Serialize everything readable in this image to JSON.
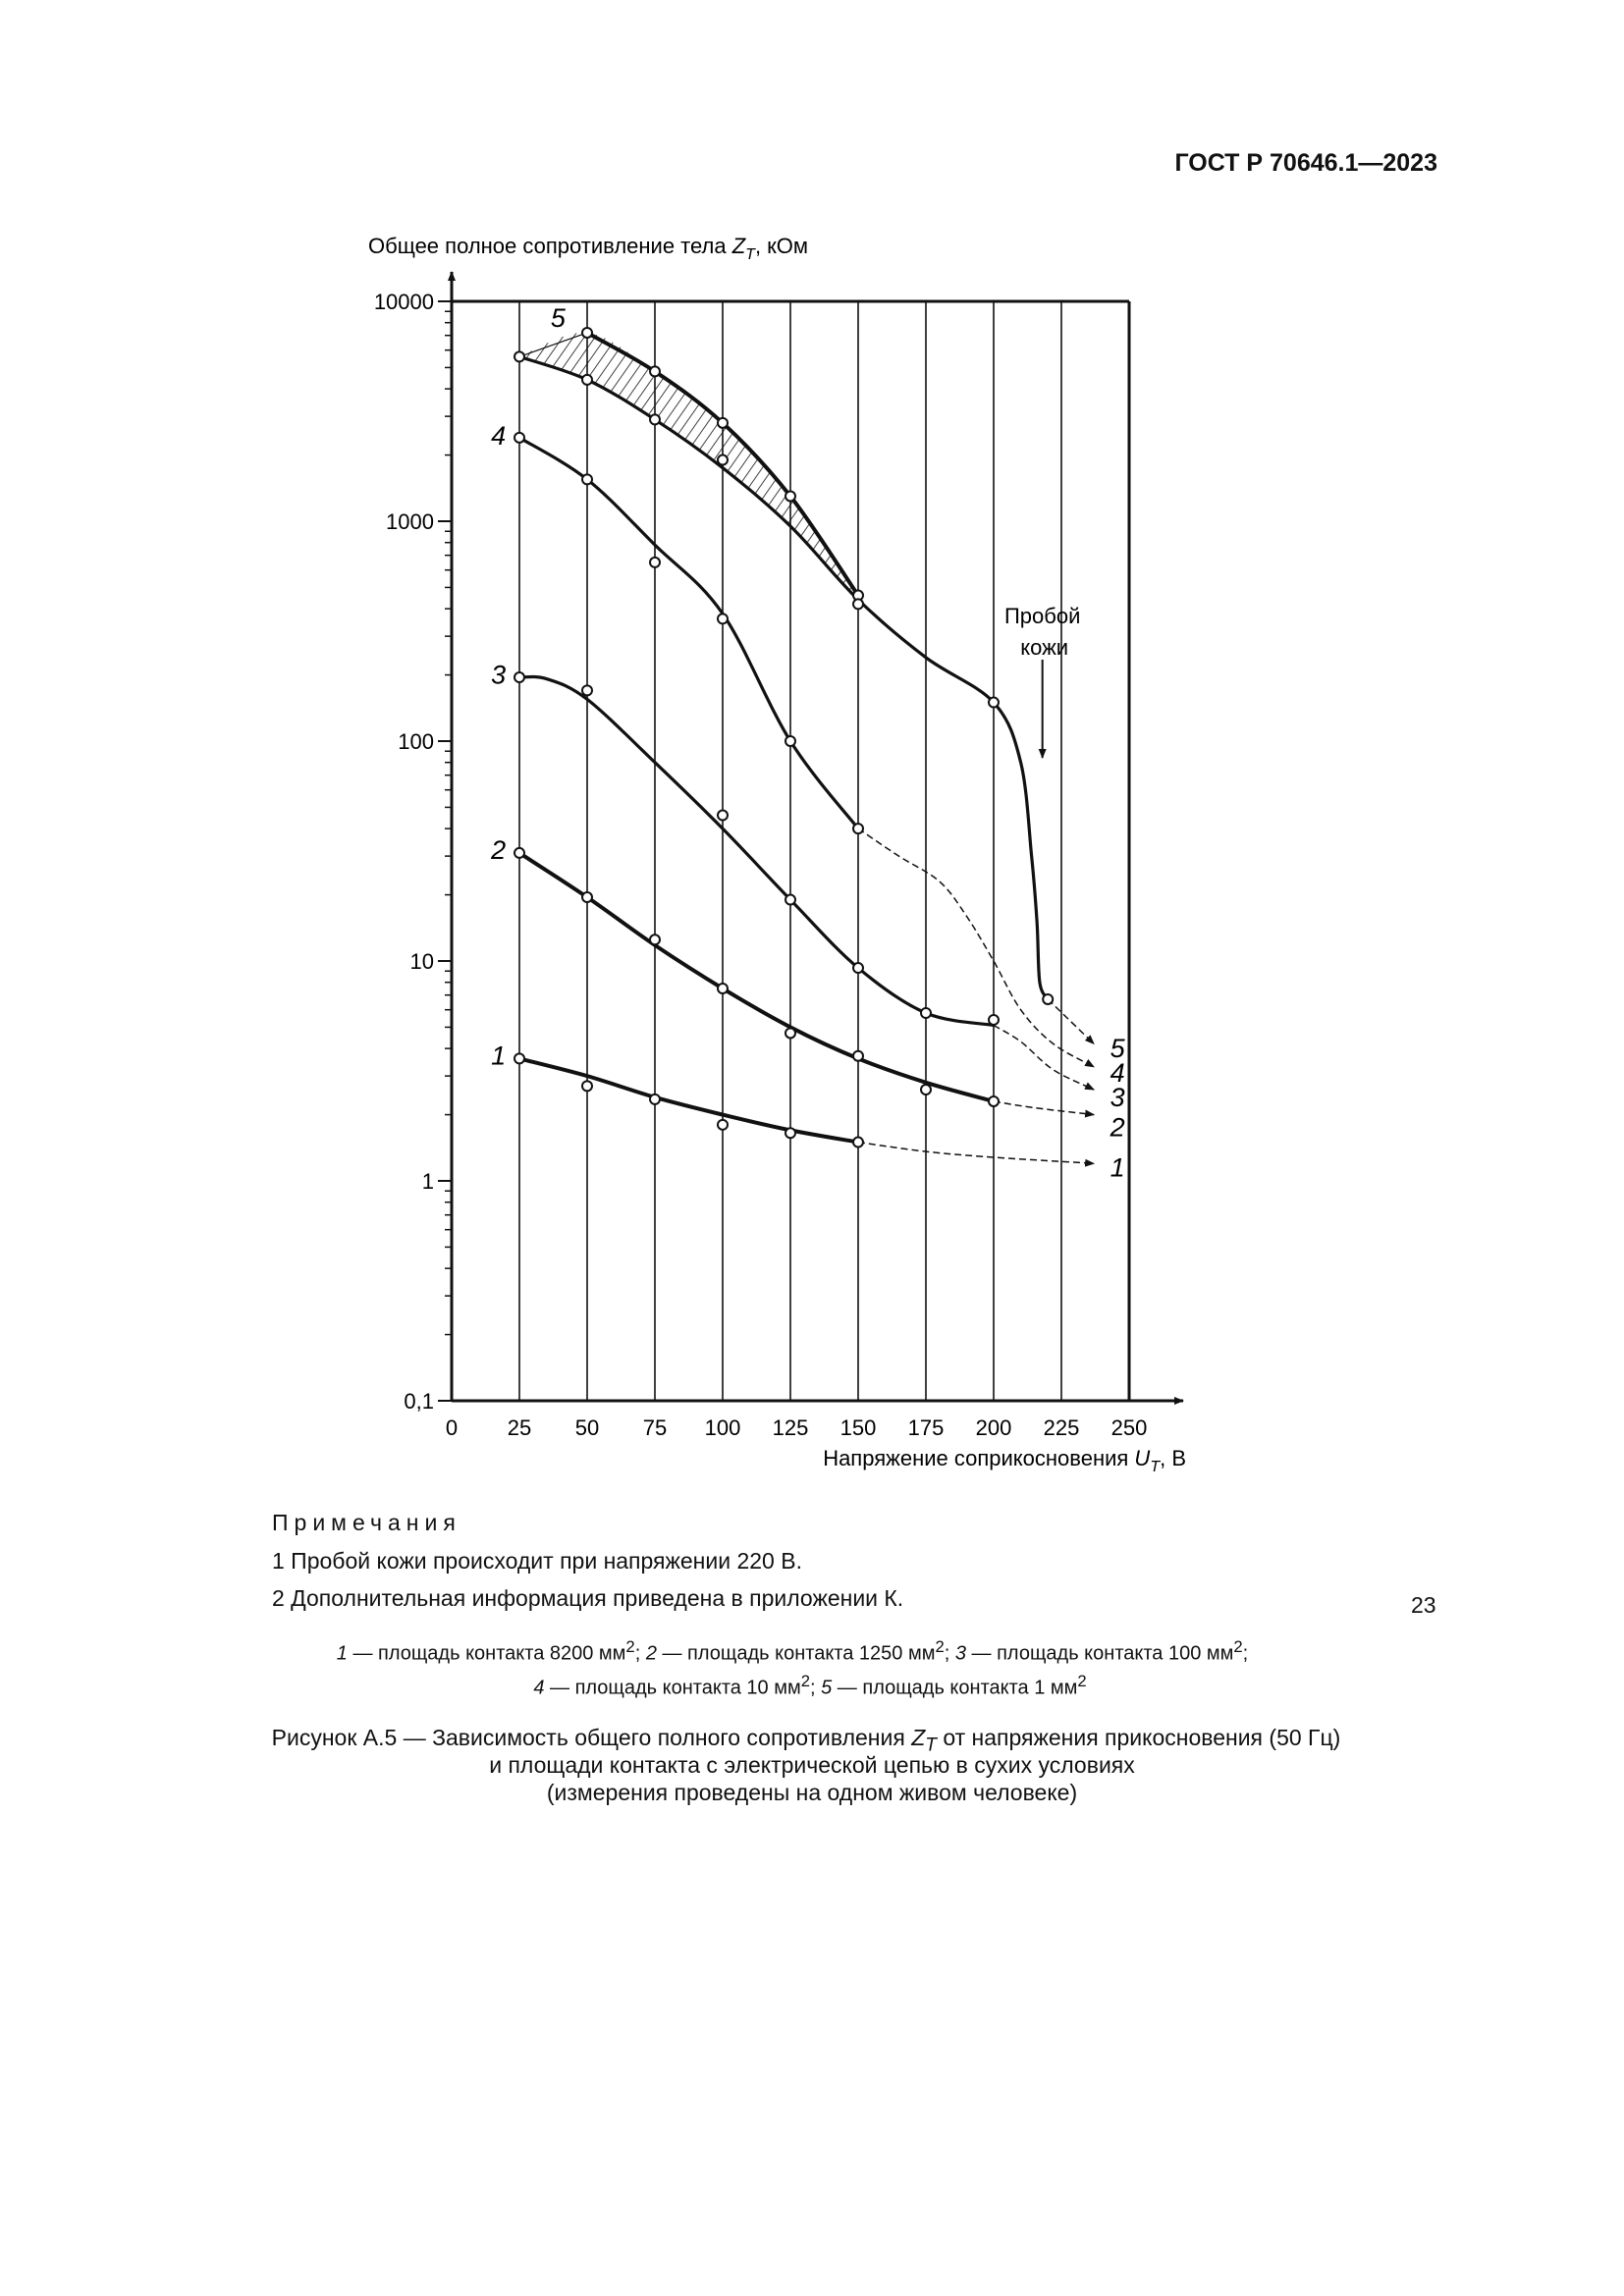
{
  "header": {
    "doc_id": "ГОСТ Р 70646.1—2023"
  },
  "page_number": "23",
  "chart_data": {
    "type": "line",
    "ylabel": "Общее полное сопротивление тела Z_T, кОм",
    "ylabel_main": "Общее полное сопротивление тела ",
    "ylabel_var": "Z",
    "ylabel_sub": "T",
    "ylabel_unit": ", кОм",
    "xlabel_main": "Напряжение соприкосновения ",
    "xlabel_var": "U",
    "xlabel_sub": "T",
    "xlabel_unit": ", В",
    "xlim": [
      0,
      250
    ],
    "ylim": [
      0.1,
      10000
    ],
    "yscale": "log",
    "grid": "vertical",
    "x_ticks": [
      "0",
      "25",
      "50",
      "75",
      "100",
      "125",
      "150",
      "175",
      "200",
      "225",
      "250"
    ],
    "x_tick_values": [
      0,
      25,
      50,
      75,
      100,
      125,
      150,
      175,
      200,
      225,
      250
    ],
    "y_ticks": [
      "0,1",
      "1",
      "10",
      "100",
      "1000",
      "10000"
    ],
    "y_tick_values": [
      0.1,
      1,
      10,
      100,
      1000,
      10000
    ],
    "annotation": {
      "text_1": "Пробой",
      "text_2": "кожи",
      "x": 218
    },
    "series": [
      {
        "name": "1",
        "label": "1",
        "points": [
          [
            25,
            3.6
          ],
          [
            50,
            2.7
          ],
          [
            75,
            2.35
          ],
          [
            100,
            1.8
          ],
          [
            125,
            1.65
          ],
          [
            150,
            1.5
          ]
        ],
        "curve": [
          [
            25,
            3.6
          ],
          [
            50,
            3.0
          ],
          [
            75,
            2.4
          ],
          [
            100,
            2.0
          ],
          [
            125,
            1.7
          ],
          [
            150,
            1.5
          ]
        ],
        "extrapolation": [
          [
            150,
            1.5
          ],
          [
            175,
            1.36
          ],
          [
            200,
            1.28
          ],
          [
            237,
            1.2
          ]
        ],
        "label_at": [
          20,
          3.7
        ],
        "end_label_at": [
          243,
          1.15
        ]
      },
      {
        "name": "2",
        "label": "2",
        "points": [
          [
            25,
            31
          ],
          [
            50,
            19.5
          ],
          [
            75,
            12.5
          ],
          [
            100,
            7.5
          ],
          [
            125,
            4.7
          ],
          [
            150,
            3.7
          ],
          [
            175,
            2.6
          ],
          [
            200,
            2.3
          ]
        ],
        "curve": [
          [
            25,
            31
          ],
          [
            50,
            19.5
          ],
          [
            75,
            11.8
          ],
          [
            100,
            7.5
          ],
          [
            125,
            5.0
          ],
          [
            150,
            3.6
          ],
          [
            175,
            2.8
          ],
          [
            200,
            2.3
          ]
        ],
        "extrapolation": [
          [
            200,
            2.3
          ],
          [
            215,
            2.15
          ],
          [
            237,
            2.0
          ]
        ],
        "label_at": [
          20,
          32
        ],
        "end_label_at": [
          243,
          1.75
        ]
      },
      {
        "name": "3",
        "label": "3",
        "points": [
          [
            25,
            195
          ],
          [
            50,
            170
          ],
          [
            100,
            46
          ],
          [
            125,
            19
          ],
          [
            150,
            9.3
          ],
          [
            175,
            5.8
          ],
          [
            200,
            5.4
          ]
        ],
        "curve": [
          [
            25,
            195
          ],
          [
            35,
            192
          ],
          [
            50,
            155
          ],
          [
            75,
            80
          ],
          [
            100,
            40
          ],
          [
            125,
            19
          ],
          [
            150,
            9.3
          ],
          [
            175,
            5.8
          ],
          [
            200,
            5.1
          ]
        ],
        "extrapolation": [
          [
            200,
            5.1
          ],
          [
            210,
            4.3
          ],
          [
            222,
            3.2
          ],
          [
            237,
            2.6
          ]
        ],
        "label_at": [
          20,
          200
        ],
        "end_label_at": [
          243,
          2.4
        ]
      },
      {
        "name": "4",
        "label": "4",
        "points": [
          [
            25,
            2400
          ],
          [
            50,
            1550
          ],
          [
            75,
            650
          ],
          [
            100,
            360
          ],
          [
            125,
            100
          ],
          [
            150,
            40
          ]
        ],
        "curve": [
          [
            25,
            2400
          ],
          [
            50,
            1550
          ],
          [
            75,
            780
          ],
          [
            100,
            380
          ],
          [
            125,
            100
          ],
          [
            150,
            40
          ]
        ],
        "extrapolation": [
          [
            150,
            40
          ],
          [
            165,
            30
          ],
          [
            180,
            23
          ],
          [
            190,
            16
          ],
          [
            200,
            10
          ],
          [
            210,
            6
          ],
          [
            222,
            4.2
          ],
          [
            237,
            3.3
          ]
        ],
        "label_at": [
          20,
          2450
        ],
        "end_label_at": [
          243,
          3.1
        ]
      },
      {
        "name": "5",
        "label": "5",
        "points": [
          [
            25,
            5600
          ],
          [
            50,
            7200
          ],
          [
            50,
            4400
          ],
          [
            75,
            4800
          ],
          [
            75,
            2900
          ],
          [
            100,
            2800
          ],
          [
            100,
            1900
          ],
          [
            125,
            1300
          ],
          [
            150,
            460
          ],
          [
            150,
            420
          ],
          [
            200,
            150
          ],
          [
            220,
            6.7
          ]
        ],
        "upper_curve": [
          [
            25,
            5600
          ],
          [
            50,
            7200
          ],
          [
            75,
            4800
          ],
          [
            100,
            2800
          ],
          [
            125,
            1300
          ],
          [
            150,
            460
          ]
        ],
        "curve": [
          [
            25,
            5600
          ],
          [
            50,
            4400
          ],
          [
            75,
            2900
          ],
          [
            100,
            1750
          ],
          [
            125,
            950
          ],
          [
            150,
            440
          ],
          [
            175,
            240
          ],
          [
            200,
            150
          ],
          [
            210,
            80
          ],
          [
            214,
            30
          ],
          [
            216,
            15
          ],
          [
            217,
            8
          ],
          [
            220,
            6.7
          ]
        ],
        "extrapolation": [
          [
            220,
            6.7
          ],
          [
            237,
            4.2
          ]
        ],
        "label_at": [
          42,
          8400
        ],
        "end_label_at": [
          243,
          4.0
        ]
      }
    ]
  },
  "notes": {
    "title": "Примечания",
    "items": [
      "1 Пробой кожи происходит при напряжении 220 В.",
      "2 Дополнительная информация приведена в приложении К."
    ]
  },
  "legend": {
    "n1": "1",
    "t1": " — площадь контакта 8200 мм",
    "n2": "2",
    "t2": " — площадь контакта 1250 мм",
    "n3": "3",
    "t3": " — площадь контакта 100 мм",
    "n4": "4",
    "t4": " — площадь контакта 10 мм",
    "n5": "5",
    "t5": " — площадь контакта 1 мм",
    "sup": "2",
    "sep": "; ",
    "end": ";"
  },
  "caption": {
    "line1_a": "Рисунок А.5 — Зависимость общего полного сопротивления ",
    "line1_var": "Z",
    "line1_sub": "T",
    "line1_b": " от напряжения прикосновения (50 Гц)",
    "line2": "и площади контакта с электрической цепью в сухих условиях",
    "line3": "(измерения проведены на одном живом человеке)"
  }
}
